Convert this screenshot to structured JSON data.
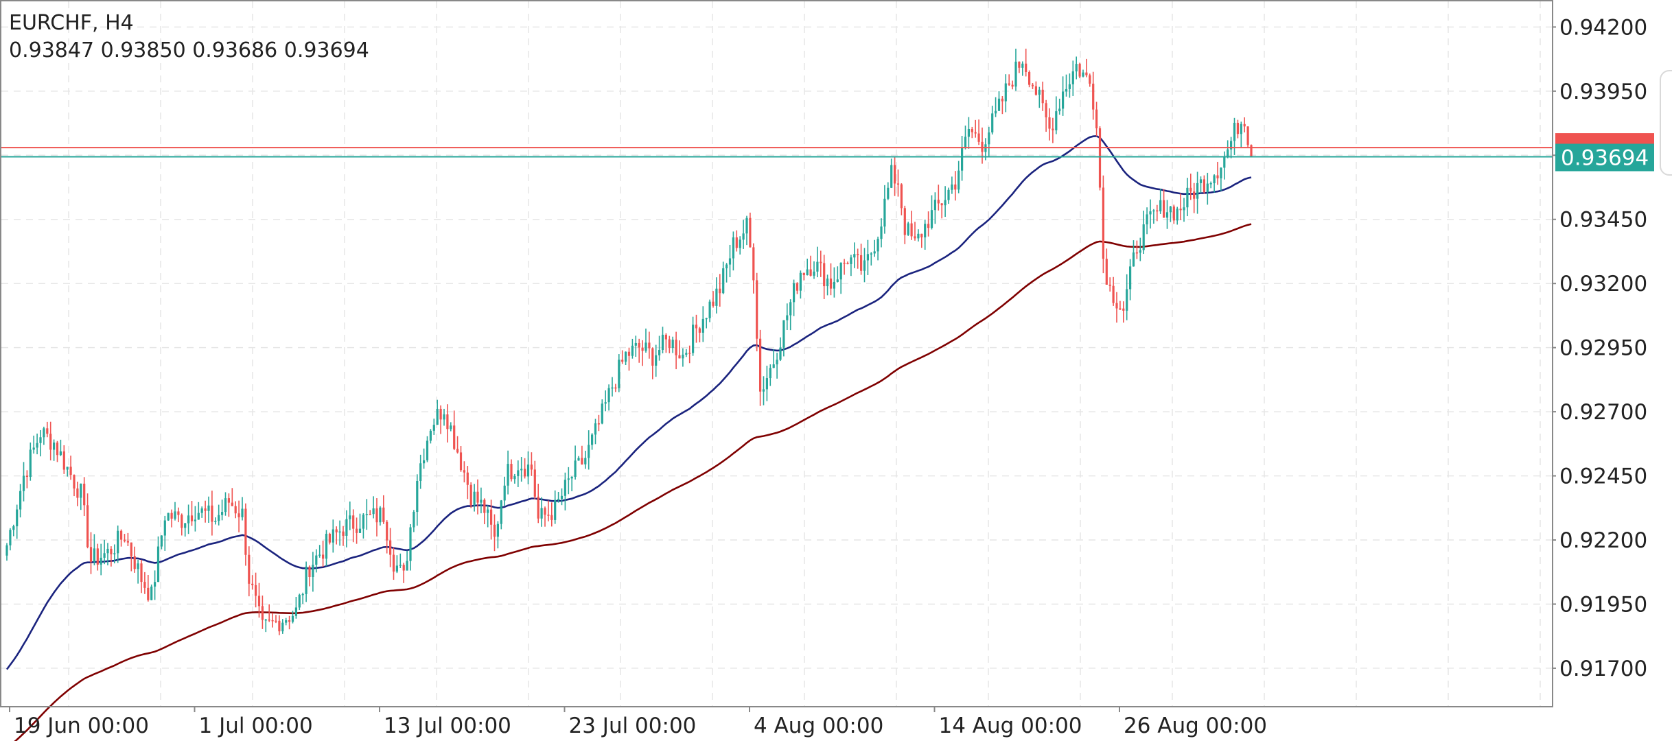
{
  "header": {
    "symbol": "EURCHF, H4",
    "ohlc": "0.93847 0.93850 0.93686 0.93694"
  },
  "colors": {
    "bull": "#26a69a",
    "bear": "#ef5350",
    "ma_fast": "#1a237e",
    "ma_slow": "#7f0000",
    "bid_line": "#26a69a",
    "ask_line": "#ef5350",
    "grid": "#e6e6e6",
    "frame": "#888888"
  },
  "chart_data": {
    "type": "candlestick",
    "symbol": "EURCHF",
    "timeframe": "H4",
    "ylim": [
      0.9155,
      0.943
    ],
    "y_ticks": [
      "0.94200",
      "0.93950",
      "0.93700",
      "0.93450",
      "0.93200",
      "0.92950",
      "0.92700",
      "0.92450",
      "0.92200",
      "0.91950",
      "0.91700"
    ],
    "x_ticks": [
      "19 Jun 00:00",
      "1 Jul 00:00",
      "13 Jul 00:00",
      "23 Jul 00:00",
      "4 Aug 00:00",
      "14 Aug 00:00",
      "26 Aug 00:00"
    ],
    "x_tick_index": [
      0,
      55,
      110,
      165,
      220,
      275,
      330
    ],
    "bars_total": 371,
    "grid": true,
    "bid_price": 0.93694,
    "bid_label": "0.93694",
    "ask_price": 0.9373,
    "close_anchors": [
      [
        0,
        0.9218
      ],
      [
        5,
        0.9245
      ],
      [
        10,
        0.9262
      ],
      [
        14,
        0.9258
      ],
      [
        18,
        0.9248
      ],
      [
        22,
        0.9238
      ],
      [
        25,
        0.9212
      ],
      [
        30,
        0.9215
      ],
      [
        35,
        0.9222
      ],
      [
        40,
        0.9205
      ],
      [
        43,
        0.9198
      ],
      [
        47,
        0.923
      ],
      [
        52,
        0.9228
      ],
      [
        56,
        0.9232
      ],
      [
        62,
        0.9228
      ],
      [
        66,
        0.9235
      ],
      [
        70,
        0.923
      ],
      [
        72,
        0.9205
      ],
      [
        76,
        0.9185
      ],
      [
        80,
        0.9188
      ],
      [
        86,
        0.9192
      ],
      [
        90,
        0.921
      ],
      [
        95,
        0.9218
      ],
      [
        100,
        0.9225
      ],
      [
        106,
        0.9228
      ],
      [
        112,
        0.923
      ],
      [
        115,
        0.9212
      ],
      [
        118,
        0.9205
      ],
      [
        122,
        0.9245
      ],
      [
        126,
        0.9265
      ],
      [
        130,
        0.9272
      ],
      [
        134,
        0.9255
      ],
      [
        138,
        0.9238
      ],
      [
        142,
        0.9232
      ],
      [
        145,
        0.922
      ],
      [
        148,
        0.9245
      ],
      [
        152,
        0.925
      ],
      [
        156,
        0.9248
      ],
      [
        158,
        0.9228
      ],
      [
        163,
        0.9232
      ],
      [
        168,
        0.9245
      ],
      [
        172,
        0.9252
      ],
      [
        176,
        0.9265
      ],
      [
        180,
        0.928
      ],
      [
        184,
        0.9292
      ],
      [
        188,
        0.9295
      ],
      [
        192,
        0.9292
      ],
      [
        197,
        0.9298
      ],
      [
        201,
        0.9292
      ],
      [
        206,
        0.9305
      ],
      [
        212,
        0.9318
      ],
      [
        216,
        0.9335
      ],
      [
        220,
        0.9342
      ],
      [
        222,
        0.9325
      ],
      [
        224,
        0.9278
      ],
      [
        228,
        0.929
      ],
      [
        232,
        0.9308
      ],
      [
        236,
        0.9325
      ],
      [
        240,
        0.9328
      ],
      [
        245,
        0.932
      ],
      [
        250,
        0.933
      ],
      [
        255,
        0.9325
      ],
      [
        259,
        0.934
      ],
      [
        263,
        0.9362
      ],
      [
        265,
        0.936
      ],
      [
        267,
        0.9342
      ],
      [
        270,
        0.9335
      ],
      [
        274,
        0.9345
      ],
      [
        278,
        0.9352
      ],
      [
        282,
        0.936
      ],
      [
        286,
        0.938
      ],
      [
        290,
        0.9375
      ],
      [
        294,
        0.9385
      ],
      [
        298,
        0.9398
      ],
      [
        302,
        0.9408
      ],
      [
        306,
        0.9395
      ],
      [
        310,
        0.938
      ],
      [
        314,
        0.9395
      ],
      [
        318,
        0.9405
      ],
      [
        322,
        0.9398
      ],
      [
        324,
        0.9385
      ],
      [
        326,
        0.933
      ],
      [
        328,
        0.9318
      ],
      [
        332,
        0.931
      ],
      [
        336,
        0.9335
      ],
      [
        340,
        0.9345
      ],
      [
        344,
        0.935
      ],
      [
        348,
        0.9348
      ],
      [
        352,
        0.9355
      ],
      [
        356,
        0.936
      ],
      [
        360,
        0.9365
      ],
      [
        363,
        0.9372
      ],
      [
        366,
        0.9382
      ],
      [
        368,
        0.9385
      ],
      [
        370,
        0.93694
      ]
    ]
  }
}
